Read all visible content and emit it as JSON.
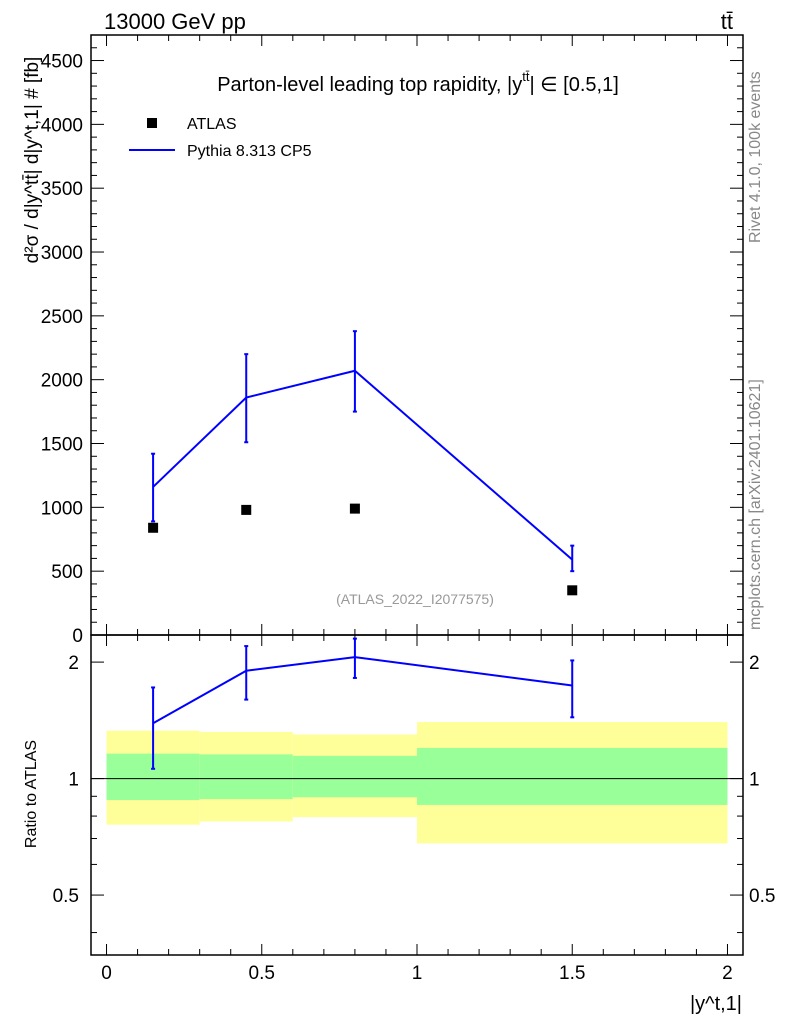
{
  "header": {
    "energy_label": "13000 GeV pp",
    "process_label": "tt̄"
  },
  "side_labels": {
    "rivet": "Rivet 4.1.0,  100k events",
    "mcplots": "mcplots.cern.ch [arXiv:2401.10621]"
  },
  "chart_data": [
    {
      "type": "line",
      "panel": "main",
      "title": "Parton-level leading top rapidity, |ȳtt̄| ∈ [0.5,1]",
      "title_main": "Parton-level leading top rapidity, |y",
      "title_sup": "tt̄",
      "title_tail": "| ∈ [0.5,1]",
      "ylabel": "d²σ / d|y^tt̄| d|y^t,1| # [fb]",
      "xlabel": "|y^t,1|",
      "xlim": [
        -0.05,
        2.05
      ],
      "ylim": [
        0,
        4700
      ],
      "yticks": [
        0,
        500,
        1000,
        1500,
        2000,
        2500,
        3000,
        3500,
        4000,
        4500
      ],
      "ytick_labels": [
        "0",
        "500",
        "1000",
        "1500",
        "2000",
        "2500",
        "3000",
        "3500",
        "4000",
        "4500"
      ],
      "watermark": "(ATLAS_2022_I2077575)",
      "legend": {
        "position": "top-left",
        "entries": [
          {
            "label": "ATLAS",
            "marker": "square",
            "color": "#000000"
          },
          {
            "label": "Pythia 8.313 CP5",
            "marker": "line",
            "color": "#0000ff"
          }
        ]
      },
      "series": [
        {
          "name": "ATLAS",
          "style": "markers",
          "x": [
            0.15,
            0.45,
            0.8,
            1.5
          ],
          "y": [
            840,
            980,
            990,
            350
          ]
        },
        {
          "name": "Pythia 8.313 CP5",
          "style": "line",
          "x": [
            0.15,
            0.45,
            0.8,
            1.5
          ],
          "y": [
            1160,
            1860,
            2070,
            590
          ],
          "err_low": [
            270,
            350,
            320,
            90
          ],
          "err_high": [
            260,
            340,
            310,
            110
          ]
        }
      ]
    },
    {
      "type": "line",
      "panel": "ratio",
      "ylabel": "Ratio to ATLAS",
      "xlabel": "|y^t,1|",
      "xlim": [
        -0.05,
        2.05
      ],
      "ylim": [
        0.35,
        2.35
      ],
      "log_y": true,
      "yticks": [
        0.5,
        1,
        2
      ],
      "ytick_labels": [
        "0.5",
        "1",
        "2"
      ],
      "xticks": [
        0,
        0.5,
        1,
        1.5,
        2
      ],
      "xtick_labels": [
        "0",
        "0.5",
        "1",
        "1.5",
        "2"
      ],
      "bands": [
        {
          "x0": 0.0,
          "x1": 0.3,
          "yellow": [
            0.76,
            1.33
          ],
          "green": [
            0.88,
            1.16
          ]
        },
        {
          "x0": 0.3,
          "x1": 0.6,
          "yellow": [
            0.775,
            1.32
          ],
          "green": [
            0.885,
            1.155
          ]
        },
        {
          "x0": 0.6,
          "x1": 1.0,
          "yellow": [
            0.795,
            1.3
          ],
          "green": [
            0.895,
            1.145
          ]
        },
        {
          "x0": 1.0,
          "x1": 2.0,
          "yellow": [
            0.68,
            1.4
          ],
          "green": [
            0.855,
            1.2
          ]
        }
      ],
      "series": [
        {
          "name": "Pythia 8.313 CP5 / ATLAS",
          "x": [
            0.15,
            0.45,
            0.8,
            1.5
          ],
          "y": [
            1.39,
            1.9,
            2.06,
            1.74
          ],
          "err_low": [
            0.33,
            0.3,
            0.24,
            0.3
          ],
          "err_high": [
            0.33,
            0.3,
            0.24,
            0.28
          ]
        }
      ]
    }
  ]
}
